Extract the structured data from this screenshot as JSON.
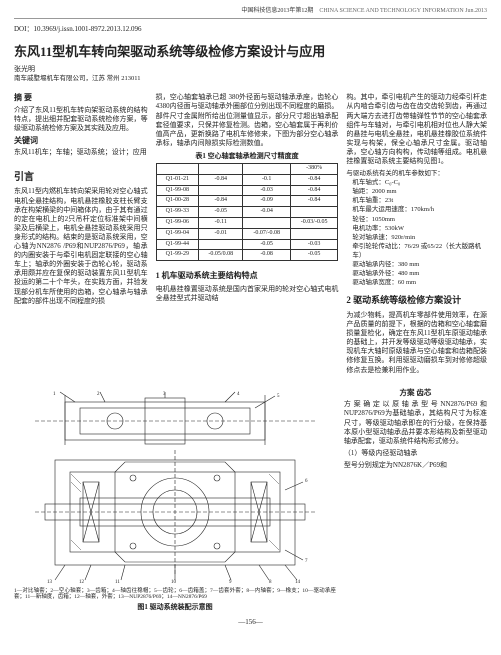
{
  "header": {
    "cn": "中国科技信息2013年第12期",
    "en": "CHINA SCIENCE AND TECHNOLOGY INFORMATION Jun.2013"
  },
  "doi": "DOI：10.3969/j.issn.1001-8972.2013.12.096",
  "title": "东风11型机车转向架驱动系统等级检修方案设计与应用",
  "author": "张光明",
  "affiliation": "南车戚墅堰机车有限公司，江苏 常州  213011",
  "abstract": {
    "head": "摘  要",
    "body": "介绍了东风11型机车转向架驱动系统的结构特点，提出细并配套驱动系统检修方案，等级驱动系统检修方案及其实践及应用。",
    "kwhead": "关键词",
    "kw": "东风11机车；车轴；驱动系统；设计；应用"
  },
  "intro": {
    "head": "引言",
    "body": "东风11型内燃机车转向架采用轮对空心轴式电机全悬挂结构，电机悬挂橡胶支柱长臂支承在构架横梁的中间箱体内，由于其有通过的定在电机上的2只吊杆定位标准架中间横梁及后横梁上，电机全悬挂驱动系统采用只身形式的结构。结束的是驱动系统采用，空心轴为NN2876 /P69和NUP2876/P69，轴承的内圈安装于与牵引电机固定联接的空心轴车上；轴承的外圈安装于齿轮心轮，驱动系承用颇并应在复保的驱动装置东风11型机车投运的第二十个年头，在实践方面，并验发现部分机车所使用的齿箱，空心轴承与轴承配套的部件出现不同程度的损"
  },
  "col2top": "损，空心轴套轴承已超 380外径面与驱动轴承承座，齿轮心4380内径面与驱动轴承外圈部位分别出现不同程度的磨损。部件尺寸金属附所给出位测量值显示，部分尺寸超出轴承配套径值要求，只保并修复检测。齿箱，空心轴套属于再利价值高产品，更新换路了电机车修修来，下图为部分空心轴承承标，轴承内间隙损实际检测数值。",
  "table": {
    "caption": "表1  空心轴套轴承检测尺寸精度度",
    "headers": [
      "",
      "",
      "",
      "-380%"
    ],
    "rows": [
      [
        "Q1-01-21",
        "-0.84",
        "-0.1",
        "-0.84"
      ],
      [
        "Q1-99-08",
        "",
        "-0.03",
        "-0.84"
      ],
      [
        "Q1-00-28",
        "-0.84",
        "-0.09",
        "-0.84"
      ],
      [
        "Q1-99-33",
        "-0.05",
        "-0.04",
        ""
      ],
      [
        "Q1-99-06",
        "-0.11",
        "",
        "-0.03/-0.05"
      ],
      [
        "Q1-99-04",
        "-0.01",
        "-0.07/-0.08",
        ""
      ],
      [
        "Q1-99-44",
        "",
        "-0.05",
        "-0.03"
      ],
      [
        "Q1-99-29",
        "-0.05/0.08",
        "-0.08",
        "-0.05"
      ]
    ]
  },
  "sec1": {
    "head": "1 机车驱动系统主要结构特点",
    "body": "电机悬挂橡置驱动系统是国内首家采用的轮对空心轴式电机全悬挂型式并驱动结"
  },
  "col3top": "构。其中，牵引电机产生的驱动力经牵引杆走从内啮合牵引齿与齿在齿交齿轮到齿，再通过两大端方去进打齿带轴弹性节节的空心轴套承组件与车轴对，与牵引电机相对位也人静大架的悬挂与电机全悬挂，电机悬挂橡胶位系统件实现与构架，保全心轴承尺寸金属。驱动轴承，空心轴方向构构，传动轴等组成。电机悬挂橡置驱动系统主要结构见图1。",
  "params": {
    "intro": "与驱动系统有关的机车参数如下：",
    "items": [
      "机车轴式：C₀-C₀",
      "轴距：2000 mm",
      "机车轴重：23t",
      "机车最大运用速度：170km/h",
      "轮径：1050mm",
      "电机功率：530kW",
      "轮对轴承速：920r/min",
      "牵引轮轮传动比：76/29 或65/22（长大版路机车）",
      "驱动轴承内径：380 mm",
      "驱动轴承外径：480 mm",
      "驱动轴承宽度：60 mm"
    ]
  },
  "sec2": {
    "head": "2  驱动系统等级检修方案设计",
    "body1": "为减少物耗，提高机车零部件使用效率，在源产品质量的前提下，根据的齿箱和空心轴套磨损量复检化，确定在东风11型机车原驱动轴承的基础上，并开发等级驱动等级驱动轴承，实现机车大轴时原级轴承与空心轴套和齿箱配装修修复互换。利用驱驱动磨损车到对修修超级修点去是检兼利用作业。",
    "sub": "方案  齿芯",
    "body2": "方案确定以原轴承型号NN2876/P69和NUP2876/P69为基础轴承，其结构尺寸为标准尺寸，等级驱动轴承即在的行分级，在保持基本原小型驱动轴承品并要本形结构及新型驱动轴承配套，驱动系统件结构形式修分。",
    "item": "（1）等级内径驱动轴承",
    "last": "型号分别规定为NN2876K／P69和"
  },
  "fig": {
    "notes": "1—对比轴套；2—空心轴套；3—齿箱；4—轴齿往稳帽；5—齿轮；6—齿箱盖；7—齿套外套；8—内轴套；9—橡支；10—驱动承座套；11—新轴度，齿箱；12—轴套，外套；13—NUP2876/P69；14—NN2876/P69",
    "caption": "图1  驱动系统装配示意图"
  },
  "pagenum": "—156—"
}
